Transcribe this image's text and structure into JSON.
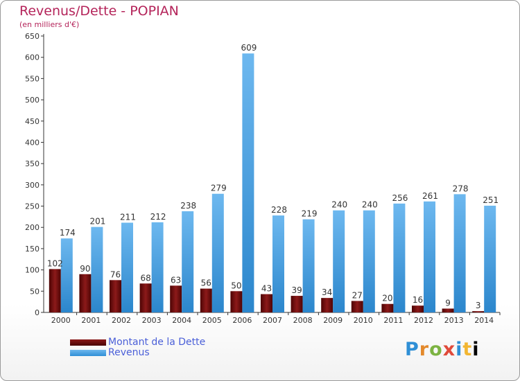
{
  "page": {
    "title": "Revenus/Dette - POPIAN",
    "subtitle": "(en milliers d'€)"
  },
  "chart_data": {
    "type": "bar",
    "title": "Revenus/Dette - POPIAN",
    "subtitle": "(en milliers d'€)",
    "categories": [
      "2000",
      "2001",
      "2002",
      "2003",
      "2004",
      "2005",
      "2006",
      "2007",
      "2008",
      "2009",
      "2010",
      "2011",
      "2012",
      "2013",
      "2014"
    ],
    "series": [
      {
        "name": "Montant de la Dette",
        "color": "#6b0d0d",
        "values": [
          102,
          90,
          76,
          68,
          63,
          56,
          50,
          43,
          39,
          34,
          27,
          20,
          16,
          9,
          3
        ]
      },
      {
        "name": "Revenus",
        "color": "#3f9de3",
        "values": [
          174,
          201,
          211,
          212,
          238,
          279,
          609,
          228,
          219,
          240,
          240,
          256,
          261,
          278,
          251
        ]
      }
    ],
    "ylim": [
      0,
      650
    ],
    "yticks": [
      0,
      50,
      100,
      150,
      200,
      250,
      300,
      350,
      400,
      450,
      500,
      550,
      600,
      650
    ],
    "grid": false,
    "legend_position": "bottom-left"
  },
  "legend": {
    "debt_label": "Montant de la Dette",
    "revenue_label": "Revenus"
  },
  "logo": {
    "letters": [
      "P",
      "r",
      "o",
      "x",
      "i",
      "t",
      "i"
    ]
  }
}
